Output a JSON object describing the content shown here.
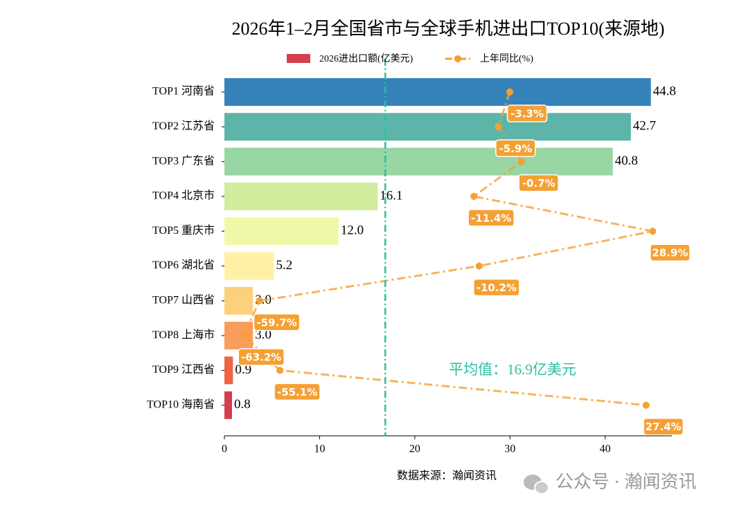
{
  "chart_data": {
    "type": "bar",
    "orientation": "horizontal",
    "title": "2026年1–2月全国省市与全球手机进出口TOP10(来源地)",
    "xlabel": "数据来源：瀚闻资讯",
    "watermark": "公众号 · 瀚闻资讯",
    "categories": [
      "TOP1 河南省",
      "TOP2 江苏省",
      "TOP3 广东省",
      "TOP4 北京市",
      "TOP5 重庆市",
      "TOP6 湖北省",
      "TOP7 山西省",
      "TOP8 上海市",
      "TOP9 江西省",
      "TOP10 海南省"
    ],
    "series": [
      {
        "name": "2026进出口额(亿美元)",
        "type": "bar",
        "color": "#d53e4f",
        "colors": [
          "#3682ba",
          "#5db5a9",
          "#98d6a4",
          "#d1ec9c",
          "#f1f9a9",
          "#fff0a6",
          "#fdd07e",
          "#fa9c5c",
          "#ee6445",
          "#d53e4f"
        ],
        "values": [
          44.8,
          42.7,
          40.8,
          16.1,
          12.0,
          5.2,
          3.0,
          3.0,
          0.9,
          0.8
        ],
        "value_labels": [
          "44.8",
          "42.7",
          "40.8",
          "16.1",
          "12.0",
          "5.2",
          "3.0",
          "3.0",
          "0.9",
          "0.8"
        ]
      },
      {
        "name": "上年同比(%)",
        "type": "line",
        "axis": "x2",
        "color": "#f5a033",
        "values": [
          -3.3,
          -5.9,
          -0.7,
          -11.4,
          28.9,
          -10.2,
          -59.7,
          -63.2,
          -55.1,
          27.4
        ],
        "value_labels": [
          "-3.3%",
          "-5.9%",
          "-0.7%",
          "-11.4%",
          "28.9%",
          "-10.2%",
          "-59.7%",
          "-63.2%",
          "-55.1%",
          "27.4%"
        ]
      }
    ],
    "xlim": [
      0,
      47
    ],
    "xticks": [
      0,
      10,
      20,
      30,
      40
    ],
    "x2lim": [
      -67.6,
      33.2
    ],
    "mean": 16.9,
    "mean_color": "#2bbf9f",
    "mean_label": "平均值：16.9亿美元",
    "legend": "top",
    "grid": false
  }
}
